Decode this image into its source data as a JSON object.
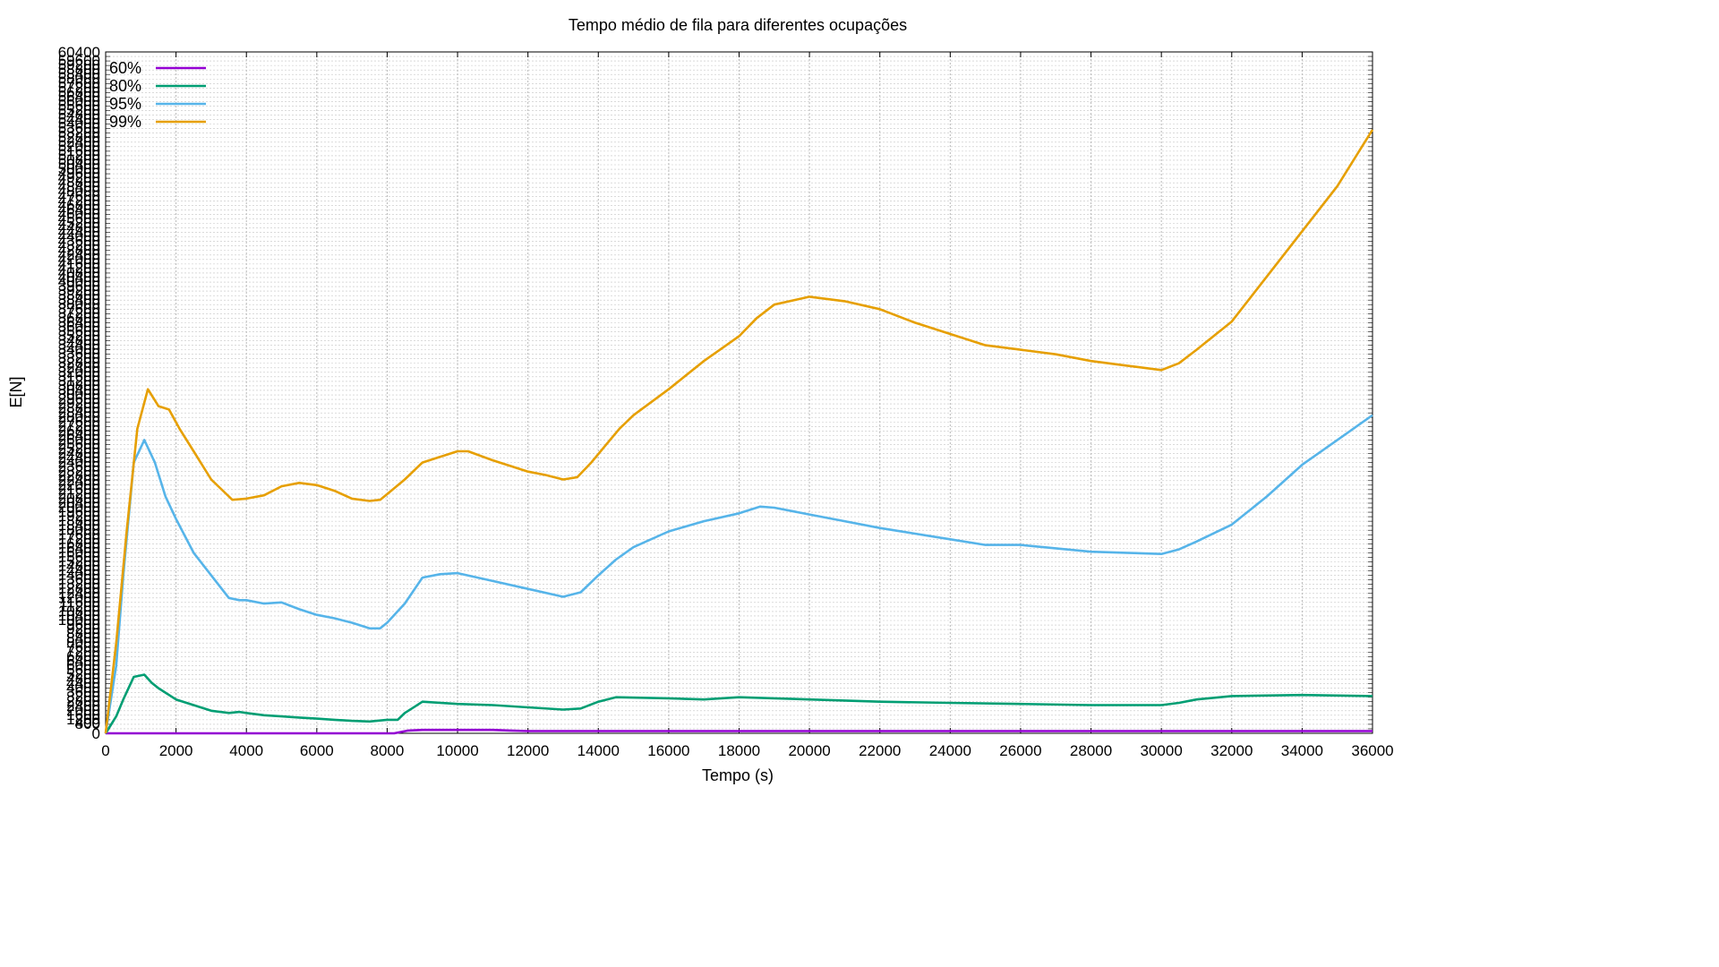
{
  "chart_data": {
    "type": "line",
    "title": "Tempo médio de fila para diferentes ocupações",
    "xlabel": "Tempo (s)",
    "ylabel": "E[N]",
    "xlim": [
      0,
      36000
    ],
    "ylim": [
      0,
      60400
    ],
    "x_ticks": [
      0,
      2000,
      4000,
      6000,
      8000,
      10000,
      12000,
      14000,
      16000,
      18000,
      20000,
      22000,
      24000,
      26000,
      28000,
      30000,
      32000,
      34000,
      36000
    ],
    "x_tick_labels": [
      "0",
      "2000",
      "4000",
      "6000",
      "8000",
      "10000",
      "12000",
      "14000",
      "16000",
      "18000",
      "20000",
      "22000",
      "24000",
      "26000",
      "28000",
      "30000",
      "32000",
      "34000",
      "36000"
    ],
    "y_top_tick_label": "60400",
    "y_bottom_tick_labels": [
      "0",
      "400"
    ],
    "grid": true,
    "legend_position": "top-left",
    "series": [
      {
        "name": "60%",
        "color": "#9400d3",
        "x": [
          0,
          8200,
          8600,
          9000,
          10000,
          11000,
          11500,
          12000,
          14000,
          16000,
          18000,
          20000,
          22000,
          24000,
          26000,
          28000,
          30000,
          32000,
          34000,
          36000
        ],
        "y": [
          0,
          0,
          250,
          300,
          300,
          300,
          250,
          200,
          200,
          200,
          200,
          200,
          200,
          200,
          200,
          200,
          200,
          200,
          200,
          200
        ]
      },
      {
        "name": "80%",
        "color": "#009e73",
        "x": [
          0,
          300,
          500,
          800,
          1100,
          1300,
          1500,
          2000,
          2500,
          3000,
          3500,
          3800,
          4000,
          4500,
          5000,
          5500,
          6000,
          6500,
          7000,
          7500,
          8000,
          8300,
          8500,
          8800,
          9000,
          10000,
          11000,
          12000,
          13000,
          13500,
          14000,
          14500,
          16000,
          17000,
          18000,
          19000,
          20000,
          22000,
          24000,
          26000,
          28000,
          30000,
          30500,
          31000,
          32000,
          34000,
          36000
        ],
        "y": [
          0,
          1500,
          3000,
          5000,
          5200,
          4500,
          4000,
          3000,
          2500,
          2000,
          1800,
          1900,
          1800,
          1600,
          1500,
          1400,
          1300,
          1200,
          1100,
          1050,
          1200,
          1200,
          1800,
          2400,
          2800,
          2600,
          2500,
          2300,
          2100,
          2200,
          2800,
          3200,
          3100,
          3000,
          3200,
          3100,
          3000,
          2800,
          2700,
          2600,
          2500,
          2500,
          2700,
          3000,
          3300,
          3400,
          3300
        ]
      },
      {
        "name": "95%",
        "color": "#56b4e9",
        "x": [
          0,
          300,
          500,
          800,
          1100,
          1400,
          1700,
          2000,
          2500,
          3000,
          3500,
          3800,
          4000,
          4500,
          5000,
          5500,
          6000,
          6500,
          7000,
          7500,
          7800,
          8000,
          8500,
          9000,
          9500,
          10000,
          11000,
          12000,
          13000,
          13500,
          14000,
          14500,
          15000,
          16000,
          17000,
          18000,
          18600,
          19000,
          20000,
          21000,
          22000,
          24000,
          25000,
          26000,
          27000,
          28000,
          29000,
          30000,
          30500,
          31000,
          32000,
          33000,
          34000,
          35000,
          36000
        ],
        "y": [
          0,
          6000,
          14000,
          24000,
          26000,
          24000,
          21000,
          19000,
          16000,
          14000,
          12000,
          11800,
          11800,
          11500,
          11600,
          11000,
          10500,
          10200,
          9800,
          9300,
          9300,
          9800,
          11500,
          13800,
          14100,
          14200,
          13500,
          12800,
          12100,
          12500,
          14000,
          15400,
          16500,
          17900,
          18800,
          19500,
          20100,
          20000,
          19400,
          18800,
          18200,
          17200,
          16700,
          16700,
          16400,
          16100,
          16000,
          15900,
          16300,
          17000,
          18500,
          21000,
          23800,
          26000,
          28200
        ]
      },
      {
        "name": "99%",
        "color": "#e69f00",
        "x": [
          0,
          300,
          600,
          900,
          1200,
          1500,
          1800,
          2100,
          2500,
          3000,
          3600,
          4000,
          4500,
          5000,
          5500,
          6000,
          6500,
          7000,
          7500,
          7800,
          8000,
          8500,
          9000,
          9500,
          10000,
          10300,
          11000,
          11500,
          12000,
          12500,
          13000,
          13400,
          13800,
          14200,
          14600,
          15000,
          16000,
          17000,
          18000,
          18500,
          19000,
          20000,
          21000,
          22000,
          23000,
          24000,
          25000,
          26000,
          27000,
          28000,
          29000,
          30000,
          30500,
          31000,
          32000,
          33000,
          34000,
          35000,
          36000
        ],
        "y": [
          0,
          8000,
          18000,
          27000,
          30500,
          29000,
          28700,
          27000,
          25000,
          22500,
          20700,
          20800,
          21100,
          21900,
          22200,
          22000,
          21500,
          20800,
          20600,
          20700,
          21200,
          22500,
          24000,
          24500,
          25000,
          25000,
          24200,
          23700,
          23200,
          22900,
          22500,
          22700,
          24000,
          25500,
          27000,
          28200,
          30500,
          33000,
          35200,
          36800,
          38000,
          38700,
          38300,
          37600,
          36400,
          35400,
          34400,
          34000,
          33600,
          33000,
          32600,
          32200,
          32800,
          34000,
          36500,
          40500,
          44500,
          48500,
          53500
        ]
      }
    ]
  }
}
